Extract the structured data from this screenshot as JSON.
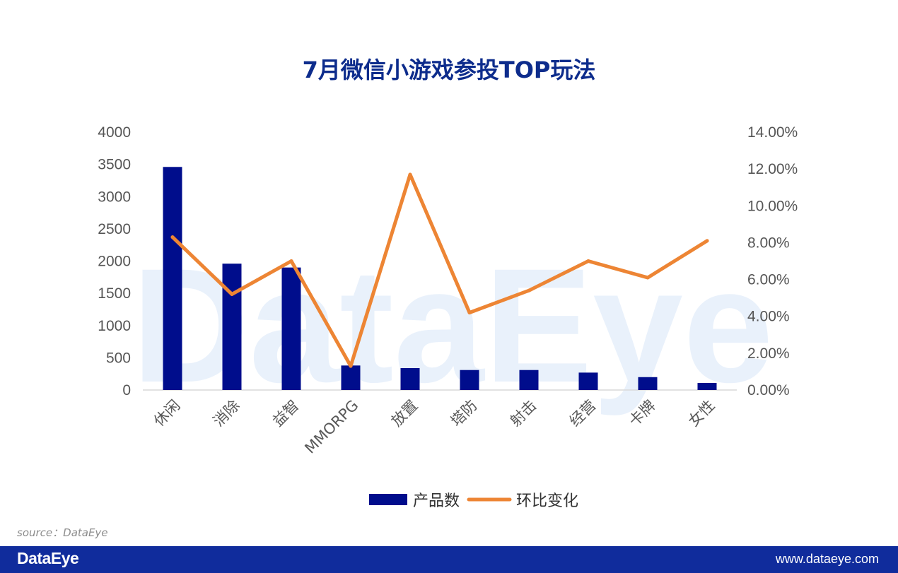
{
  "chart_data": {
    "type": "bar",
    "title": "7月微信小游戏参投TOP玩法",
    "categories": [
      "休闲",
      "消除",
      "益智",
      "MMORPG",
      "放置",
      "塔防",
      "射击",
      "经营",
      "卡牌",
      "女性"
    ],
    "series": [
      {
        "name": "产品数",
        "type": "bar",
        "axis": "left",
        "color": "#000d8c",
        "values": [
          3460,
          1960,
          1900,
          380,
          340,
          310,
          310,
          270,
          200,
          110
        ]
      },
      {
        "name": "环比变化",
        "type": "line",
        "axis": "right",
        "color": "#ed8534",
        "values": [
          8.3,
          5.2,
          7.0,
          1.3,
          11.7,
          4.2,
          5.4,
          7.0,
          6.1,
          8.1
        ]
      }
    ],
    "y_left": {
      "min": 0,
      "max": 4000,
      "ticks": [
        "0",
        "500",
        "1000",
        "1500",
        "2000",
        "2500",
        "3000",
        "3500",
        "4000"
      ]
    },
    "y_right": {
      "min": 0,
      "max": 14,
      "ticks": [
        "0.00%",
        "2.00%",
        "4.00%",
        "6.00%",
        "8.00%",
        "10.00%",
        "12.00%",
        "14.00%"
      ]
    },
    "grid": false,
    "legend": "bottom"
  },
  "watermark": "DataEye",
  "source_note": "source：DataEye",
  "footer": {
    "logo": "DataEye",
    "url": "www.dataeye.com"
  }
}
